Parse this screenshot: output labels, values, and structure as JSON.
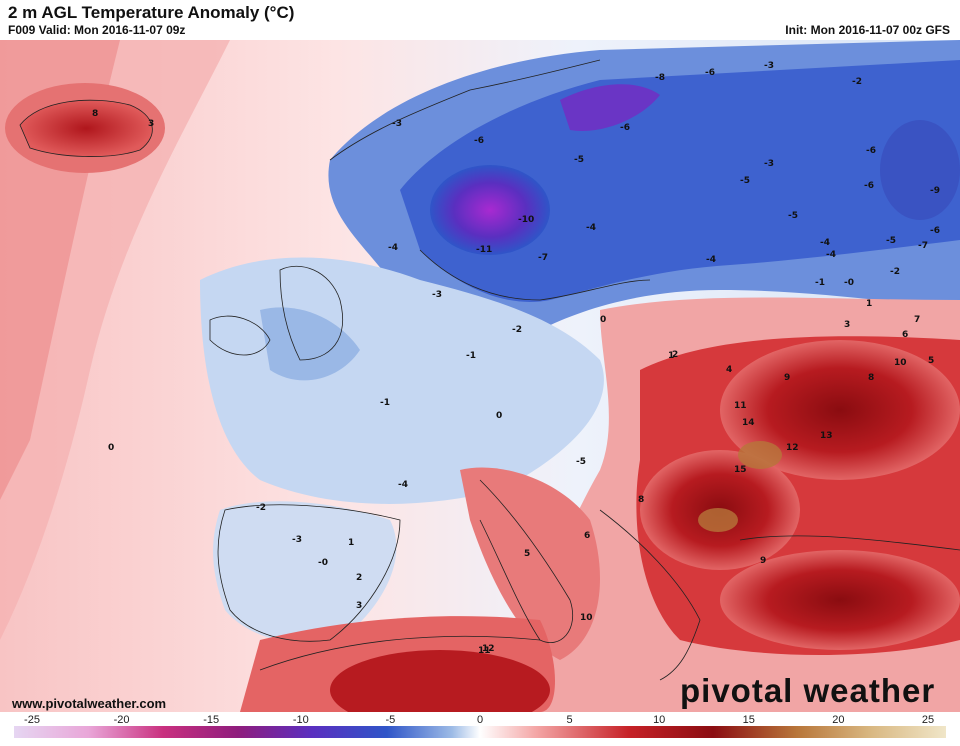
{
  "header": {
    "title": "2 m AGL Temperature Anomaly (°C)",
    "valid": "F009 Valid: Mon 2016-11-07 09z",
    "init": "Init: Mon 2016-11-07 00z GFS"
  },
  "footer": {
    "website": "www.pivotalweather.com",
    "logo": "pivotal weather"
  },
  "colorbar": {
    "ticks": [
      "-25",
      "-20",
      "-15",
      "-10",
      "-5",
      "0",
      "5",
      "10",
      "15",
      "20",
      "25"
    ],
    "range": [
      -25,
      25
    ]
  },
  "colors": {
    "very_cold": "#7b2fb5",
    "cold": "#3358c9",
    "cool": "#9dbbe6",
    "neutral": "#ffffff",
    "warm": "#f4a6a6",
    "hot": "#c62127",
    "very_hot": "#8b0d12",
    "extreme": "#b8763a"
  },
  "map_labels": [
    "8",
    "3",
    "-3",
    "-6",
    "-8",
    "-6",
    "-3",
    "-2",
    "-4",
    "-6",
    "-5",
    "-6",
    "-5",
    "-3",
    "-5",
    "-6",
    "-9",
    "-10",
    "-11",
    "-7",
    "-4",
    "-3",
    "-4",
    "-4",
    "-5",
    "-6",
    "-7",
    "-2",
    "-4",
    "-1",
    "-0",
    "1",
    "0",
    "-2",
    "-1",
    "0",
    "1",
    "2",
    "3",
    "4",
    "5",
    "6",
    "7",
    "8",
    "9",
    "10",
    "11",
    "12",
    "13",
    "14",
    "15",
    "0",
    "-1",
    "-2",
    "-3",
    "-4",
    "-0",
    "1",
    "2",
    "3",
    "11",
    "12",
    "10",
    "9",
    "8",
    "6",
    "5",
    "-5"
  ]
}
